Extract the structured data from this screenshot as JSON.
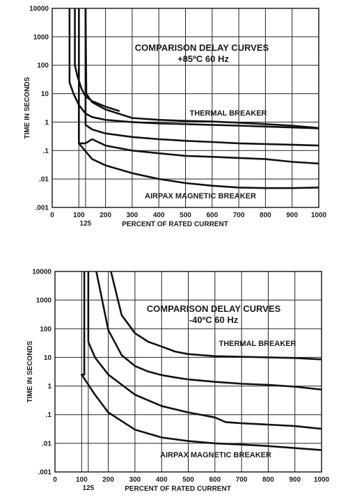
{
  "chart_data": [
    {
      "type": "line",
      "title": "COMPARISON DELAY CURVES",
      "subtitle": "+85ºC  60 Hz",
      "xlabel": "PERCENT OF RATED CURRENT",
      "ylabel": "TIME IN SECONDS",
      "xlim": [
        0,
        1000
      ],
      "ylim": [
        0.001,
        10000
      ],
      "yscale": "log",
      "grid": true,
      "x_ticks": [
        "0",
        "100",
        "200",
        "300",
        "400",
        "500",
        "600",
        "700",
        "800",
        "900",
        "1000"
      ],
      "x_extra_tick": "125",
      "y_ticks": [
        "10000",
        "1000",
        "100",
        "10",
        "1",
        ".1",
        ".01",
        ".001"
      ],
      "annotations": [
        "THERMAL BREAKER",
        "AIRPAX MAGNETIC BREAKER"
      ],
      "series": [
        {
          "label": "THERMAL BREAKER",
          "x": [
            125,
            128,
            150,
            200,
            300,
            400,
            500,
            600,
            700,
            800,
            900,
            1000
          ],
          "y": [
            10000,
            10,
            5,
            2.8,
            1.4,
            1.2,
            1.1,
            1.05,
            0.95,
            0.85,
            0.75,
            0.62
          ]
        },
        {
          "x": [
            125,
            125,
            150,
            200,
            300,
            400,
            500,
            600,
            700,
            800,
            900,
            1000
          ],
          "y": [
            10000,
            0.8,
            0.55,
            0.4,
            0.3,
            0.25,
            0.22,
            0.2,
            0.18,
            0.17,
            0.16,
            0.15
          ]
        },
        {
          "x": [
            100,
            100,
            125,
            150,
            200,
            300,
            400,
            500,
            600,
            700,
            800,
            900,
            1000
          ],
          "y": [
            10000,
            0.18,
            0.18,
            0.25,
            0.15,
            0.1,
            0.08,
            0.065,
            0.06,
            0.055,
            0.05,
            0.04,
            0.035
          ]
        },
        {
          "label": "AIRPAX MAGNETIC BREAKER",
          "x": [
            100,
            100,
            150,
            200,
            300,
            400,
            500,
            600,
            700,
            800,
            900,
            1000
          ],
          "y": [
            10000,
            0.18,
            0.05,
            0.03,
            0.016,
            0.01,
            0.0072,
            0.0058,
            0.005,
            0.0048,
            0.0048,
            0.005
          ]
        },
        {
          "x": [
            65,
            65,
            80,
            100,
            125,
            150,
            200,
            300,
            400,
            500,
            600,
            700,
            800,
            900,
            1000
          ],
          "y": [
            10000,
            25,
            10,
            4,
            2,
            1.5,
            1.2,
            1.0,
            0.9,
            0.85,
            0.8,
            0.75,
            0.7,
            0.65,
            0.6
          ]
        },
        {
          "x": [
            85,
            85,
            95,
            110,
            125,
            150,
            200,
            250
          ],
          "y": [
            10000,
            100,
            40,
            15,
            8,
            5.5,
            3.5,
            2.5
          ]
        }
      ]
    },
    {
      "type": "line",
      "title": "COMPARISON DELAY CURVES",
      "subtitle": "-40ºC  60 Hz",
      "xlabel": "PERCENT OF RATED CURRENT",
      "ylabel": "TIME IN SECONDS",
      "xlim": [
        0,
        1000
      ],
      "ylim": [
        0.001,
        10000
      ],
      "yscale": "log",
      "grid": true,
      "x_ticks": [
        "0",
        "100",
        "200",
        "300",
        "400",
        "500",
        "600",
        "700",
        "800",
        "900",
        "1000"
      ],
      "x_extra_tick": "125",
      "y_ticks": [
        "10000",
        "1000",
        "100",
        "10",
        "1",
        ".1",
        ".01",
        ".001"
      ],
      "annotations": [
        "THERMAL BREAKER",
        "AIRPAX MAGNETIC BREAKER"
      ],
      "series": [
        {
          "label": "THERMAL BREAKER",
          "x": [
            210,
            250,
            300,
            350,
            400,
            450,
            500,
            600,
            700,
            800,
            900,
            1000
          ],
          "y": [
            10000,
            300,
            70,
            35,
            24,
            16,
            13,
            11,
            10.5,
            10,
            9.5,
            8.5
          ]
        },
        {
          "x": [
            155,
            200,
            250,
            300,
            350,
            400,
            450,
            500,
            600,
            700,
            800,
            900,
            1000
          ],
          "y": [
            10000,
            90,
            12,
            5,
            3.2,
            2.4,
            2,
            1.7,
            1.4,
            1.2,
            1.1,
            0.95,
            0.75
          ]
        },
        {
          "x": [
            125,
            125,
            150,
            200,
            300,
            400,
            500,
            600,
            640,
            700,
            800,
            900,
            1000
          ],
          "y": [
            10000,
            35,
            10,
            2.5,
            0.5,
            0.2,
            0.12,
            0.08,
            0.055,
            0.05,
            0.045,
            0.04,
            0.032
          ]
        },
        {
          "label": "AIRPAX MAGNETIC BREAKER",
          "x": [
            110,
            110,
            100,
            150,
            200,
            300,
            400,
            500,
            600,
            700,
            800,
            900,
            1000
          ],
          "y": [
            10000,
            2.5,
            2.5,
            0.5,
            0.12,
            0.03,
            0.016,
            0.012,
            0.01,
            0.009,
            0.008,
            0.0068,
            0.0058
          ]
        }
      ]
    }
  ]
}
